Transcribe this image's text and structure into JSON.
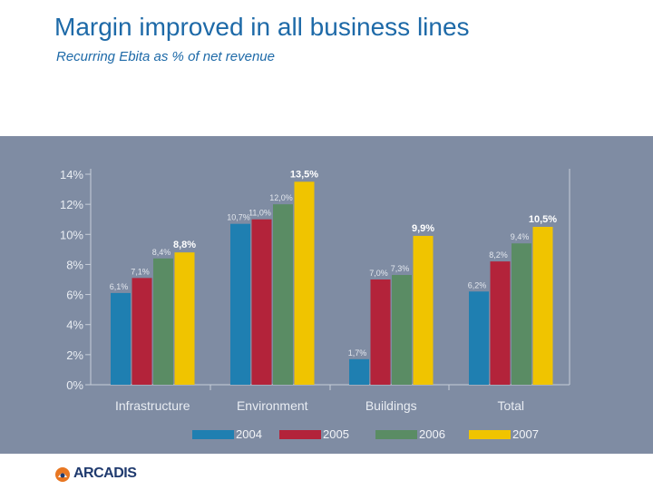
{
  "slide": {
    "title": "Margin improved in all business lines",
    "subtitle": "Recurring Ebita as % of net revenue"
  },
  "chart_data": {
    "type": "bar",
    "categories": [
      "Infrastructure",
      "Environment",
      "Buildings",
      "Total"
    ],
    "series": [
      {
        "name": "2004",
        "color": "#1f7fb1",
        "values": [
          6.1,
          10.7,
          1.7,
          6.2
        ],
        "labels": [
          "6,1%",
          "10,7%",
          "1,7%",
          "6,2%"
        ]
      },
      {
        "name": "2005",
        "color": "#b3233a",
        "values": [
          7.1,
          11.0,
          7.0,
          8.2
        ],
        "labels": [
          "7,1%",
          "11,0%",
          "7,0%",
          "8,2%"
        ]
      },
      {
        "name": "2006",
        "color": "#5a8c64",
        "values": [
          8.4,
          12.0,
          7.3,
          9.4
        ],
        "labels": [
          "8,4%",
          "12,0%",
          "7,3%",
          "9,4%"
        ]
      },
      {
        "name": "2007",
        "color": "#f0c400",
        "values": [
          8.8,
          13.5,
          9.9,
          10.5
        ],
        "labels": [
          "8,8%",
          "13,5%",
          "9,9%",
          "10,5%"
        ]
      }
    ],
    "ylim": [
      0,
      14
    ],
    "yticks": [
      "0%",
      "2%",
      "4%",
      "6%",
      "8%",
      "10%",
      "12%",
      "14%"
    ],
    "xlabel": "",
    "ylabel": "",
    "legend_position": "bottom",
    "grid": false
  },
  "brand": {
    "logo_text": "ARCADIS"
  }
}
